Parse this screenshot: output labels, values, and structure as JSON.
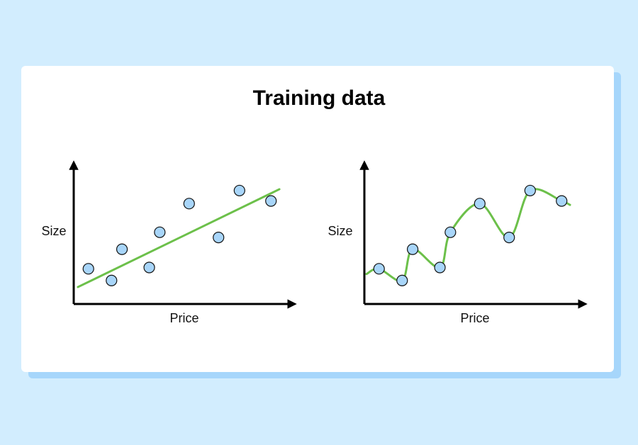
{
  "title": "Training data",
  "colors": {
    "background": "#d2edfe",
    "card": "#ffffff",
    "card_shadow": "#a6d6fb",
    "point_fill": "#a8d5f9",
    "line": "#6cc04a",
    "axis": "#000000"
  },
  "chart_data": [
    {
      "type": "scatter",
      "fit": "linear",
      "xlabel": "Price",
      "ylabel": "Size",
      "xlim": [
        0,
        10
      ],
      "ylim": [
        0,
        10
      ],
      "points": [
        {
          "x": 0.7,
          "y": 2.7
        },
        {
          "x": 1.8,
          "y": 1.8
        },
        {
          "x": 2.3,
          "y": 4.2
        },
        {
          "x": 3.6,
          "y": 2.8
        },
        {
          "x": 4.1,
          "y": 5.5
        },
        {
          "x": 5.5,
          "y": 7.7
        },
        {
          "x": 6.9,
          "y": 5.1
        },
        {
          "x": 7.9,
          "y": 8.7
        },
        {
          "x": 9.4,
          "y": 7.9
        }
      ],
      "fit_line": [
        {
          "x": 0.2,
          "y": 1.3
        },
        {
          "x": 9.8,
          "y": 8.8
        }
      ]
    },
    {
      "type": "scatter",
      "fit": "overfit-curve",
      "xlabel": "Price",
      "ylabel": "Size",
      "xlim": [
        0,
        10
      ],
      "ylim": [
        0,
        10
      ],
      "points": [
        {
          "x": 0.7,
          "y": 2.7
        },
        {
          "x": 1.8,
          "y": 1.8
        },
        {
          "x": 2.3,
          "y": 4.2
        },
        {
          "x": 3.6,
          "y": 2.8
        },
        {
          "x": 4.1,
          "y": 5.5
        },
        {
          "x": 5.5,
          "y": 7.7
        },
        {
          "x": 6.9,
          "y": 5.1
        },
        {
          "x": 7.9,
          "y": 8.7
        },
        {
          "x": 9.4,
          "y": 7.9
        }
      ],
      "curve_start": {
        "x": 0.1,
        "y": 2.3
      },
      "curve_end": {
        "x": 9.8,
        "y": 7.6
      }
    }
  ]
}
